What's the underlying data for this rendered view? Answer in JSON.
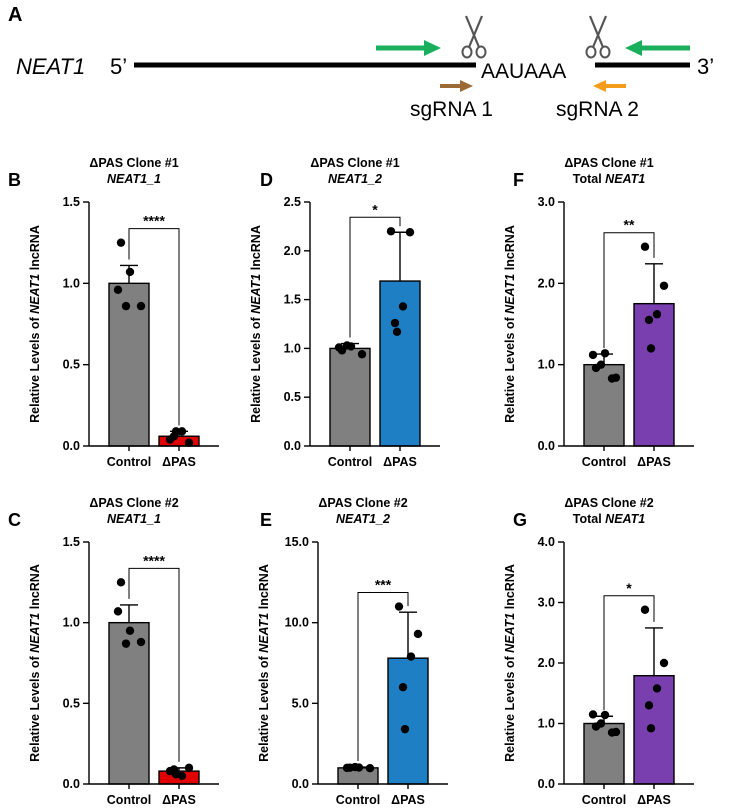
{
  "schematic": {
    "panel_label": "A",
    "gene": "NEAT1",
    "five_prime": "5’",
    "three_prime": "3’",
    "pas_motif": "AAUAAA",
    "sgrna1": "sgRNA 1",
    "sgrna2": "sgRNA 2",
    "colors": {
      "primer": "#1aaf5d",
      "sgrna1": "#9b6a35",
      "sgrna2": "#f39c1b",
      "line": "#000000"
    }
  },
  "chart_data": [
    {
      "id": "B",
      "type": "bar",
      "panel_label": "B",
      "title": "ΔPAS Clone #1",
      "subtitle": "NEAT1_1",
      "ylabel_pre": "Relative Levels of ",
      "ylabel_gene": "NEAT1",
      "ylabel_post": " lncRNA",
      "categories": [
        "Control",
        "ΔPAS"
      ],
      "values": [
        1.0,
        0.06
      ],
      "errors": [
        0.11,
        0.03
      ],
      "points": [
        [
          0.96,
          1.07,
          0.86,
          0.86,
          1.25
        ],
        [
          0.04,
          0.02,
          0.09,
          0.06,
          0.09
        ]
      ],
      "colors": [
        "#808080",
        "#e00000"
      ],
      "ylim": [
        0,
        1.5
      ],
      "yticks": [
        0,
        0.5,
        1.0,
        1.5
      ],
      "ytick_labels": [
        "0.0",
        "0.5",
        "1.0",
        "1.5"
      ],
      "significance": "****"
    },
    {
      "id": "D",
      "type": "bar",
      "panel_label": "D",
      "title": "ΔPAS Clone #1",
      "subtitle": "NEAT1_2",
      "ylabel_pre": "Relative Levels of ",
      "ylabel_gene": "NEAT1",
      "ylabel_post": " lncRNA",
      "categories": [
        "Control",
        "ΔPAS"
      ],
      "values": [
        1.0,
        1.69
      ],
      "errors": [
        0.05,
        0.5
      ],
      "points": [
        [
          1.01,
          1.02,
          1.03,
          0.94,
          0.98
        ],
        [
          2.2,
          2.19,
          1.43,
          1.26,
          1.17
        ]
      ],
      "colors": [
        "#808080",
        "#1f7fc4"
      ],
      "ylim": [
        0,
        2.5
      ],
      "yticks": [
        0,
        0.5,
        1.0,
        1.5,
        2.0,
        2.5
      ],
      "ytick_labels": [
        "0.0",
        "0.5",
        "1.0",
        "1.5",
        "2.0",
        "2.5"
      ],
      "significance": "*"
    },
    {
      "id": "F",
      "type": "bar",
      "panel_label": "F",
      "title": "ΔPAS Clone #1",
      "subtitle_pre": "Total ",
      "subtitle": "NEAT1",
      "ylabel_pre": "Relative Levels of ",
      "ylabel_gene": "NEAT1",
      "ylabel_post": " lncRNA",
      "categories": [
        "Control",
        "ΔPAS"
      ],
      "values": [
        1.0,
        1.75
      ],
      "errors": [
        0.13,
        0.49
      ],
      "points": [
        [
          1.12,
          1.14,
          1.0,
          0.84,
          0.96,
          0.83
        ],
        [
          2.45,
          1.97,
          1.62,
          1.55,
          1.2
        ]
      ],
      "colors": [
        "#808080",
        "#7a3fae"
      ],
      "ylim": [
        0,
        3.0
      ],
      "yticks": [
        0,
        1.0,
        2.0,
        3.0
      ],
      "ytick_labels": [
        "0.0",
        "1.0",
        "2.0",
        "3.0"
      ],
      "significance": "**"
    },
    {
      "id": "C",
      "type": "bar",
      "panel_label": "C",
      "title": "ΔPAS Clone #2",
      "subtitle": "NEAT1_1",
      "ylabel_pre": "Relative Levels of ",
      "ylabel_gene": "NEAT1",
      "ylabel_post": " lncRNA",
      "categories": [
        "Control",
        "ΔPAS"
      ],
      "values": [
        1.0,
        0.08
      ],
      "errors": [
        0.11,
        0.02
      ],
      "points": [
        [
          1.07,
          0.95,
          0.87,
          0.88,
          1.25
        ],
        [
          0.08,
          0.1,
          0.05,
          0.09,
          0.06
        ]
      ],
      "colors": [
        "#808080",
        "#e00000"
      ],
      "ylim": [
        0,
        1.5
      ],
      "yticks": [
        0,
        0.5,
        1.0,
        1.5
      ],
      "ytick_labels": [
        "0.0",
        "0.5",
        "1.0",
        "1.5"
      ],
      "significance": "****"
    },
    {
      "id": "E",
      "type": "bar",
      "panel_label": "E",
      "title": "ΔPAS Clone #2",
      "subtitle": "NEAT1_2",
      "ylabel_pre": "Relative Levels of ",
      "ylabel_gene": "NEAT1",
      "ylabel_post": " lncRNA",
      "categories": [
        "Control",
        "ΔPAS"
      ],
      "values": [
        1.0,
        7.8
      ],
      "errors": [
        0.05,
        2.85
      ],
      "points": [
        [
          1.0,
          1.02,
          1.05,
          0.98,
          1.01
        ],
        [
          11.0,
          9.3,
          7.9,
          6.0,
          3.4
        ]
      ],
      "colors": [
        "#808080",
        "#1f7fc4"
      ],
      "ylim": [
        0,
        15.0
      ],
      "yticks": [
        0,
        5.0,
        10.0,
        15.0
      ],
      "ytick_labels": [
        "0.0",
        "5.0",
        "10.0",
        "15.0"
      ],
      "significance": "***"
    },
    {
      "id": "G",
      "type": "bar",
      "panel_label": "G",
      "title": "ΔPAS Clone #2",
      "subtitle_pre": "Total ",
      "subtitle": "NEAT1",
      "ylabel_pre": "Relative Levels of ",
      "ylabel_gene": "NEAT1",
      "ylabel_post": " lncRNA",
      "categories": [
        "Control",
        "ΔPAS"
      ],
      "values": [
        1.0,
        1.79
      ],
      "errors": [
        0.12,
        0.79
      ],
      "points": [
        [
          1.15,
          1.14,
          1.0,
          0.86,
          0.95,
          0.85
        ],
        [
          2.88,
          2.0,
          1.58,
          1.3,
          0.92
        ]
      ],
      "colors": [
        "#808080",
        "#7a3fae"
      ],
      "ylim": [
        0,
        4.0
      ],
      "yticks": [
        0,
        1.0,
        2.0,
        3.0,
        4.0
      ],
      "ytick_labels": [
        "0.0",
        "1.0",
        "2.0",
        "3.0",
        "4.0"
      ],
      "significance": "*"
    }
  ]
}
